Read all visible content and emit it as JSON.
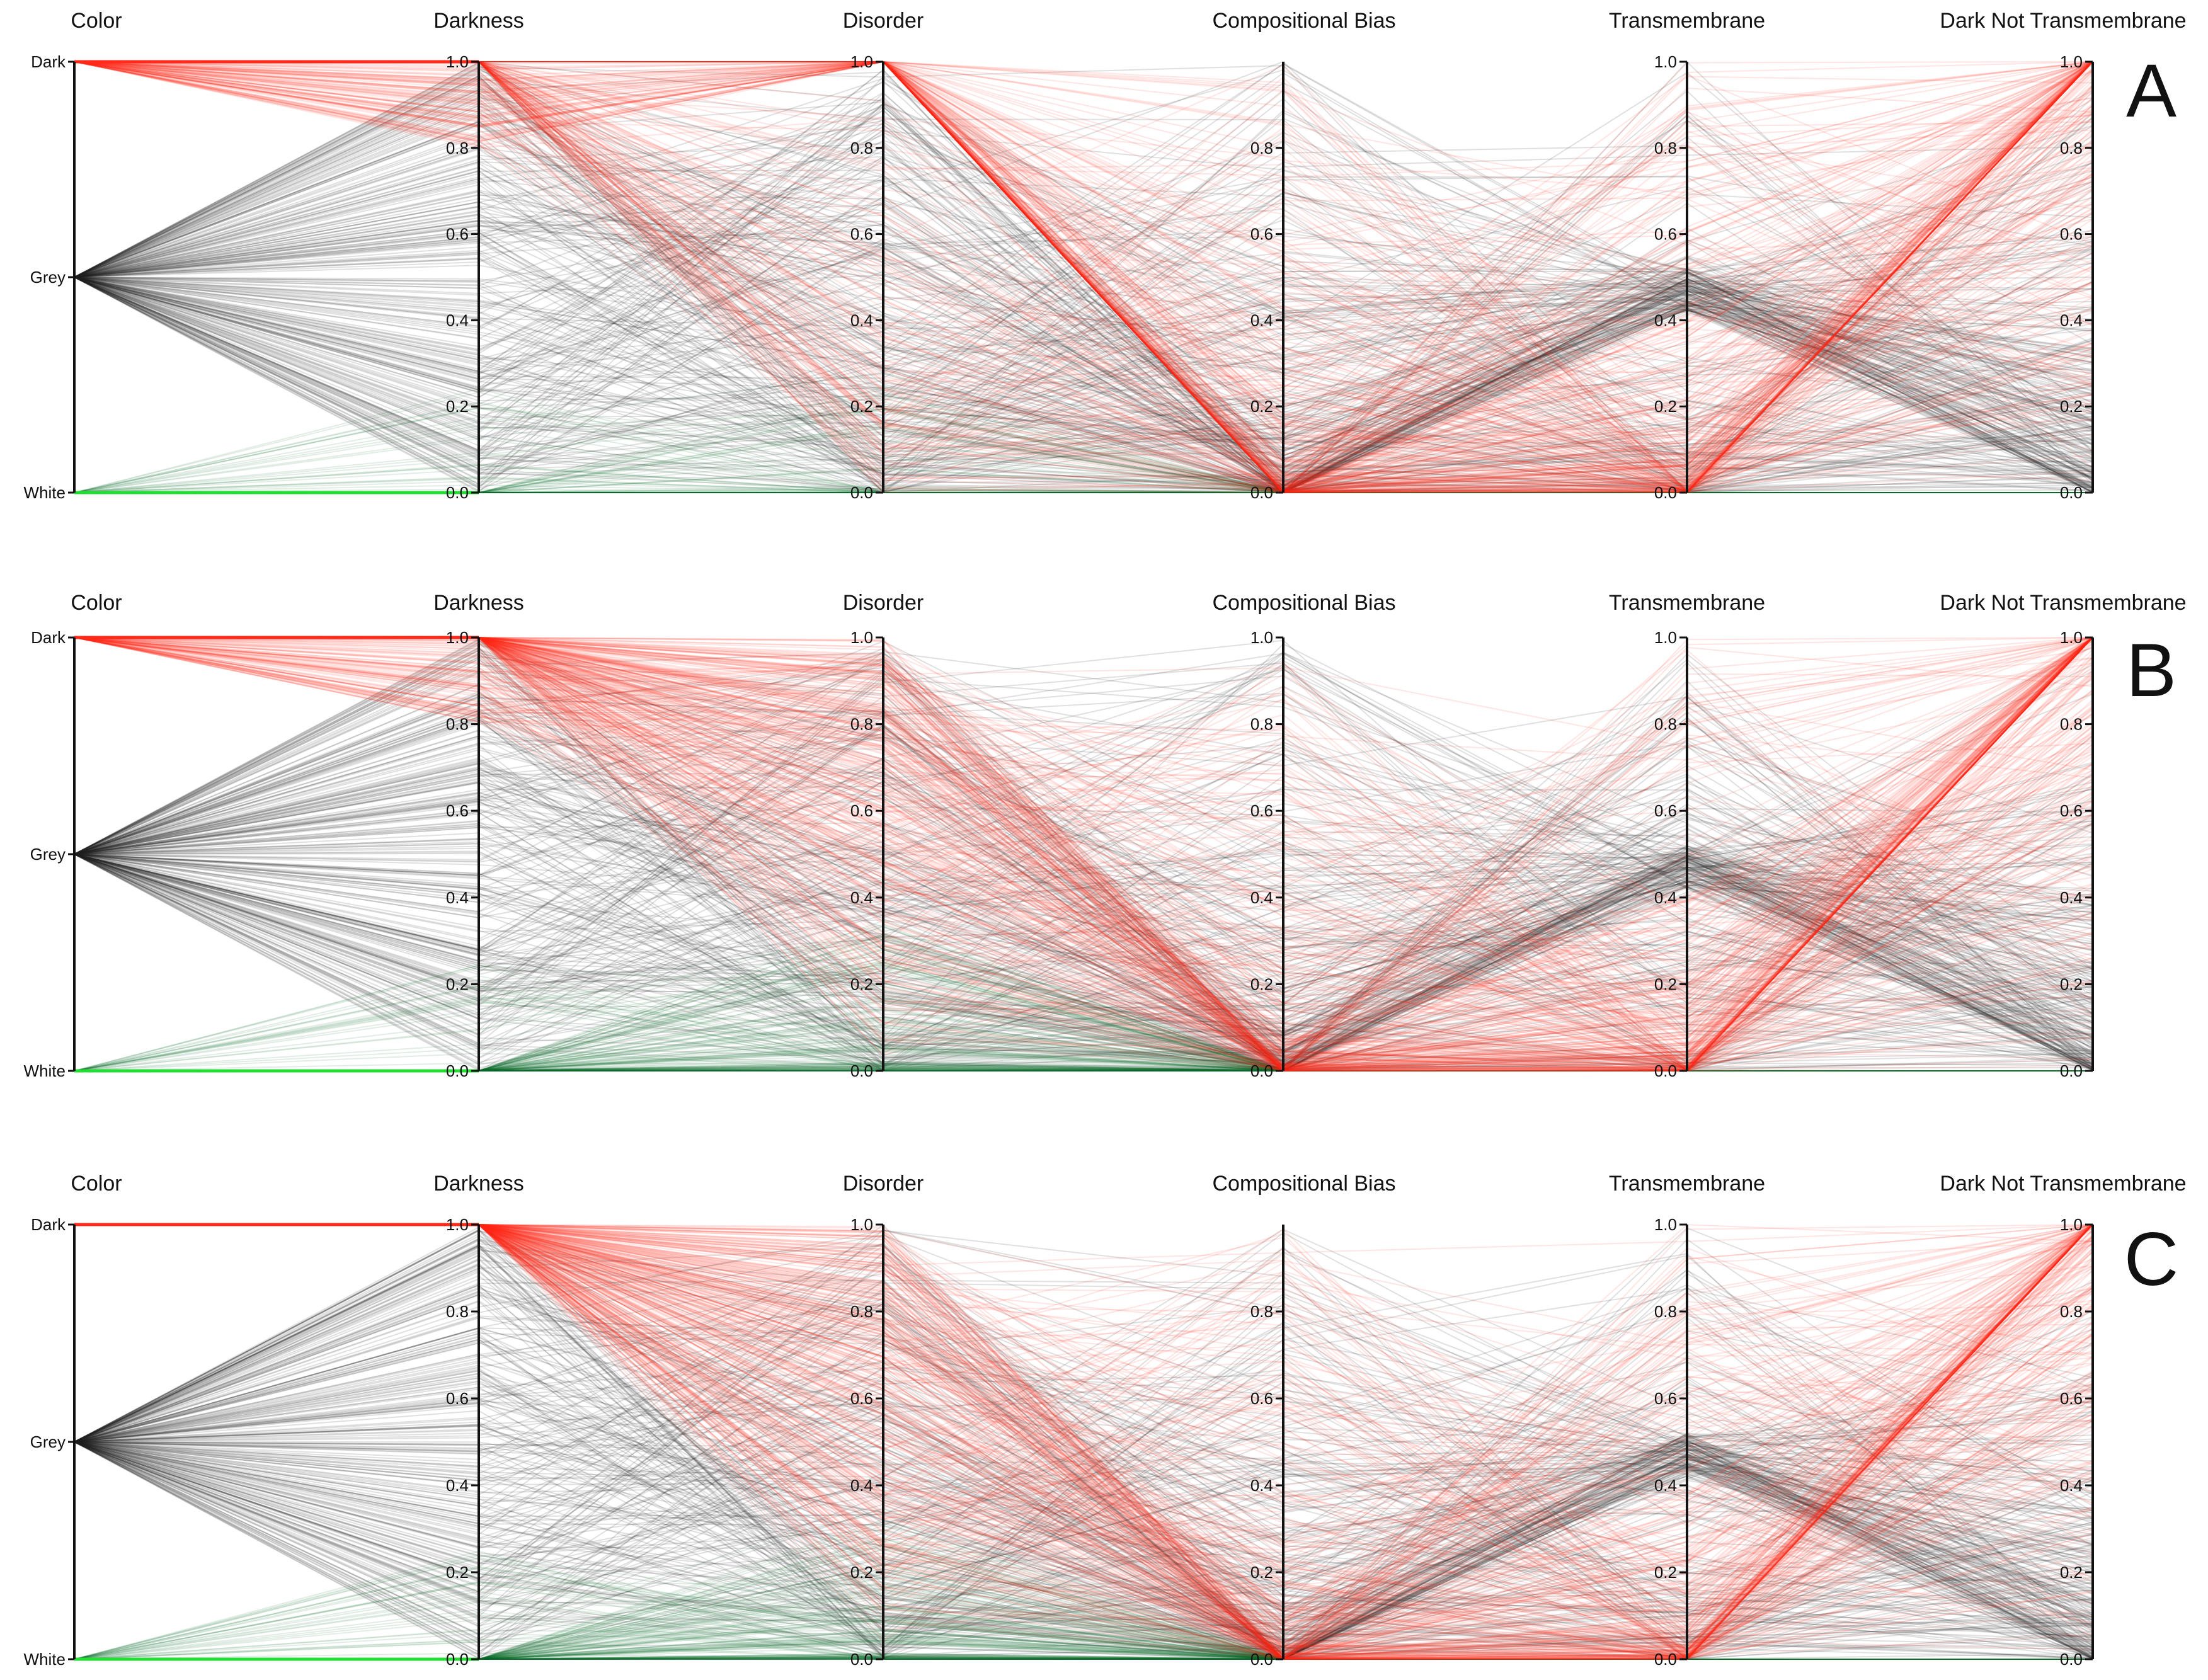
{
  "chart_data": [
    {
      "type": "parallel-coordinates",
      "panel_label": "A",
      "axes": [
        {
          "name": "Color",
          "categorical": true,
          "ticks": [
            "Dark",
            "Grey",
            "White"
          ]
        },
        {
          "name": "Darkness",
          "range": [
            0,
            1
          ],
          "ticks": [
            "1.0",
            "0.8",
            "0.6",
            "0.4",
            "0.2",
            "0.0"
          ]
        },
        {
          "name": "Disorder",
          "range": [
            0,
            1
          ],
          "ticks": [
            "1.0",
            "0.8",
            "0.6",
            "0.4",
            "0.2",
            "0.0"
          ]
        },
        {
          "name": "Compositional Bias",
          "range": [
            0,
            1
          ],
          "ticks": [
            "0.8",
            "0.6",
            "0.4",
            "0.2",
            "0.0"
          ]
        },
        {
          "name": "Transmembrane",
          "range": [
            0,
            1
          ],
          "ticks": [
            "1.0",
            "0.8",
            "0.6",
            "0.4",
            "0.2",
            "0.0"
          ]
        },
        {
          "name": "Dark Not Transmembrane",
          "range": [
            0,
            1
          ],
          "ticks": [
            "1.0",
            "0.8",
            "0.6",
            "0.4",
            "0.2",
            "0.0"
          ]
        }
      ],
      "groups": [
        {
          "name": "Dark",
          "color": "#ff2a1a"
        },
        {
          "name": "Grey",
          "color": "#222222"
        },
        {
          "name": "White",
          "color": "#0a6a2a"
        }
      ],
      "highlight": "Disorder"
    },
    {
      "type": "parallel-coordinates",
      "panel_label": "B",
      "axes": [
        {
          "name": "Color",
          "categorical": true,
          "ticks": [
            "Dark",
            "Grey",
            "White"
          ]
        },
        {
          "name": "Darkness",
          "range": [
            0,
            1
          ],
          "ticks": [
            "1.0",
            "0.8",
            "0.6",
            "0.4",
            "0.2",
            "0.0"
          ]
        },
        {
          "name": "Disorder",
          "range": [
            0,
            1
          ],
          "ticks": [
            "1.0",
            "0.8",
            "0.6",
            "0.4",
            "0.2",
            "0.0"
          ]
        },
        {
          "name": "Compositional Bias",
          "range": [
            0,
            1
          ],
          "ticks": [
            "1.0",
            "0.8",
            "0.6",
            "0.4",
            "0.2",
            "0.0"
          ]
        },
        {
          "name": "Transmembrane",
          "range": [
            0,
            1
          ],
          "ticks": [
            "1.0",
            "0.8",
            "0.6",
            "0.4",
            "0.2",
            "0.0"
          ]
        },
        {
          "name": "Dark Not Transmembrane",
          "range": [
            0,
            1
          ],
          "ticks": [
            "1.0",
            "0.8",
            "0.6",
            "0.4",
            "0.2",
            "0.0"
          ]
        }
      ],
      "groups": [
        {
          "name": "Dark",
          "color": "#ff2a1a"
        },
        {
          "name": "Grey",
          "color": "#222222"
        },
        {
          "name": "White",
          "color": "#0a6a2a"
        }
      ],
      "highlight": "Darkness"
    },
    {
      "type": "parallel-coordinates",
      "panel_label": "C",
      "axes": [
        {
          "name": "Color",
          "categorical": true,
          "ticks": [
            "Dark",
            "Grey",
            "White"
          ]
        },
        {
          "name": "Darkness",
          "range": [
            0,
            1
          ],
          "ticks": [
            "1.0",
            "0.8",
            "0.6",
            "0.4",
            "0.2",
            "0.0"
          ]
        },
        {
          "name": "Disorder",
          "range": [
            0,
            1
          ],
          "ticks": [
            "1.0",
            "0.8",
            "0.6",
            "0.4",
            "0.2",
            "0.0"
          ]
        },
        {
          "name": "Compositional Bias",
          "range": [
            0,
            1
          ],
          "ticks": [
            "0.8",
            "0.6",
            "0.4",
            "0.2",
            "0.0"
          ]
        },
        {
          "name": "Transmembrane",
          "range": [
            0,
            1
          ],
          "ticks": [
            "1.0",
            "0.8",
            "0.6",
            "0.4",
            "0.2",
            "0.0"
          ]
        },
        {
          "name": "Dark Not Transmembrane",
          "range": [
            0,
            1
          ],
          "ticks": [
            "1.0",
            "0.8",
            "0.6",
            "0.4",
            "0.2",
            "0.0"
          ]
        }
      ],
      "groups": [
        {
          "name": "Dark",
          "color": "#ff2a1a"
        },
        {
          "name": "Grey",
          "color": "#222222"
        },
        {
          "name": "White",
          "color": "#0a6a2a"
        }
      ],
      "highlight": "Color"
    }
  ]
}
